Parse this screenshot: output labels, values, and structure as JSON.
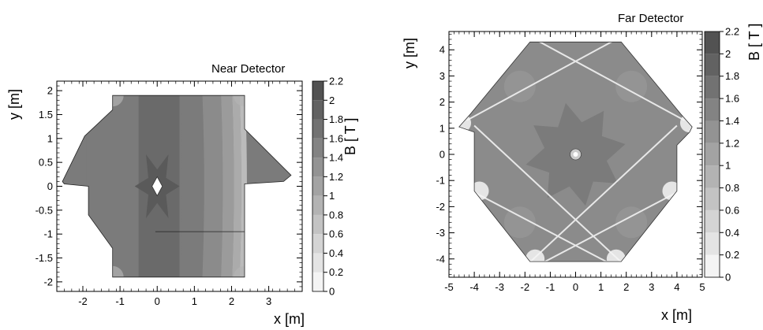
{
  "chart_data": [
    {
      "type": "heatmap",
      "title": "Near Detector",
      "xlabel": "x [m]",
      "ylabel": "y [m]",
      "zlabel": "B [ T ]",
      "xlim": [
        -2.7,
        3.9
      ],
      "ylim": [
        -2.2,
        2.2
      ],
      "zlim": [
        0,
        2.2
      ],
      "x_ticks": [
        -2,
        -1,
        0,
        1,
        2,
        3
      ],
      "y_ticks": [
        -2,
        -1.5,
        -1,
        -0.5,
        0,
        0.5,
        1,
        1.5,
        2
      ],
      "z_ticks": [
        0,
        0.2,
        0.4,
        0.6,
        0.8,
        1,
        1.2,
        1.4,
        1.6,
        1.8,
        2,
        2.2
      ],
      "x_tick_labels": [
        "-2",
        "-1",
        "0",
        "1",
        "2",
        "3"
      ],
      "y_tick_labels": [
        "-2",
        "-1.5",
        "-1",
        "-0.5",
        "0",
        "0.5",
        "1",
        "1.5",
        "2"
      ],
      "z_tick_labels": [
        "0",
        "0.2",
        "0.4",
        "0.6",
        "0.8",
        "1",
        "1.2",
        "1.4",
        "1.6",
        "1.8",
        "2",
        "2.2"
      ],
      "outline": [
        [
          -1.2,
          1.9
        ],
        [
          2.35,
          1.9
        ],
        [
          2.35,
          1.2
        ],
        [
          3.6,
          0.23
        ],
        [
          3.4,
          0.1
        ],
        [
          2.35,
          0.05
        ],
        [
          2.35,
          -0.95
        ],
        [
          -0.05,
          -0.95
        ],
        [
          2.35,
          -0.95
        ],
        [
          2.35,
          -1.9
        ],
        [
          -1.2,
          -1.9
        ],
        [
          -1.2,
          -1.3
        ],
        [
          -1.85,
          -0.6
        ],
        [
          -1.85,
          0.0
        ],
        [
          -2.5,
          0.05
        ],
        [
          -2.55,
          0.1
        ],
        [
          -1.95,
          1.05
        ],
        [
          -1.2,
          1.6
        ]
      ],
      "contour_bands": [
        {
          "x_from": -1.9,
          "x_to": -0.5,
          "B": 1.6
        },
        {
          "x_from": -0.5,
          "x_to": 0.6,
          "B": 1.8
        },
        {
          "x_from": 0.6,
          "x_to": 1.2,
          "B": 1.6
        },
        {
          "x_from": 1.2,
          "x_to": 1.7,
          "B": 1.4
        },
        {
          "x_from": 1.7,
          "x_to": 2.0,
          "B": 1.2
        },
        {
          "x_from": 2.0,
          "x_to": 2.2,
          "B": 1.0
        },
        {
          "x_from": 2.2,
          "x_to": 2.35,
          "B": 0.8
        }
      ]
    },
    {
      "type": "heatmap",
      "title": "Far Detector",
      "xlabel": "x [m]",
      "ylabel": "y [m]",
      "zlabel": "B [ T ]",
      "xlim": [
        -5,
        5
      ],
      "ylim": [
        -4.7,
        4.7
      ],
      "zlim": [
        0,
        2.2
      ],
      "x_ticks": [
        -5,
        -4,
        -3,
        -2,
        -1,
        0,
        1,
        2,
        3,
        4,
        5
      ],
      "y_ticks": [
        -4,
        -3,
        -2,
        -1,
        0,
        1,
        2,
        3,
        4
      ],
      "z_ticks": [
        0,
        0.2,
        0.4,
        0.6,
        0.8,
        1,
        1.2,
        1.4,
        1.6,
        1.8,
        2,
        2.2
      ],
      "x_tick_labels": [
        "-5",
        "-4",
        "-3",
        "-2",
        "-1",
        "0",
        "1",
        "2",
        "3",
        "4",
        "5"
      ],
      "y_tick_labels": [
        "-4",
        "-3",
        "-2",
        "-1",
        "0",
        "1",
        "2",
        "3",
        "4"
      ],
      "z_tick_labels": [
        "0",
        "0.2",
        "0.4",
        "0.6",
        "0.8",
        "1",
        "1.2",
        "1.4",
        "1.6",
        "1.8",
        "2",
        "2.2"
      ],
      "outline": [
        [
          -1.8,
          4.3
        ],
        [
          1.8,
          4.3
        ],
        [
          4.15,
          1.55
        ],
        [
          4.6,
          1.05
        ],
        [
          4.5,
          0.85
        ],
        [
          4.0,
          0.35
        ],
        [
          4.0,
          -1.4
        ],
        [
          1.8,
          -4.1
        ],
        [
          -1.8,
          -4.1
        ],
        [
          -4.0,
          -1.4
        ],
        [
          -4.0,
          0.85
        ],
        [
          -4.6,
          1.05
        ],
        [
          -4.15,
          1.55
        ]
      ],
      "background_B": 1.4,
      "core_B": 1.6
    }
  ]
}
